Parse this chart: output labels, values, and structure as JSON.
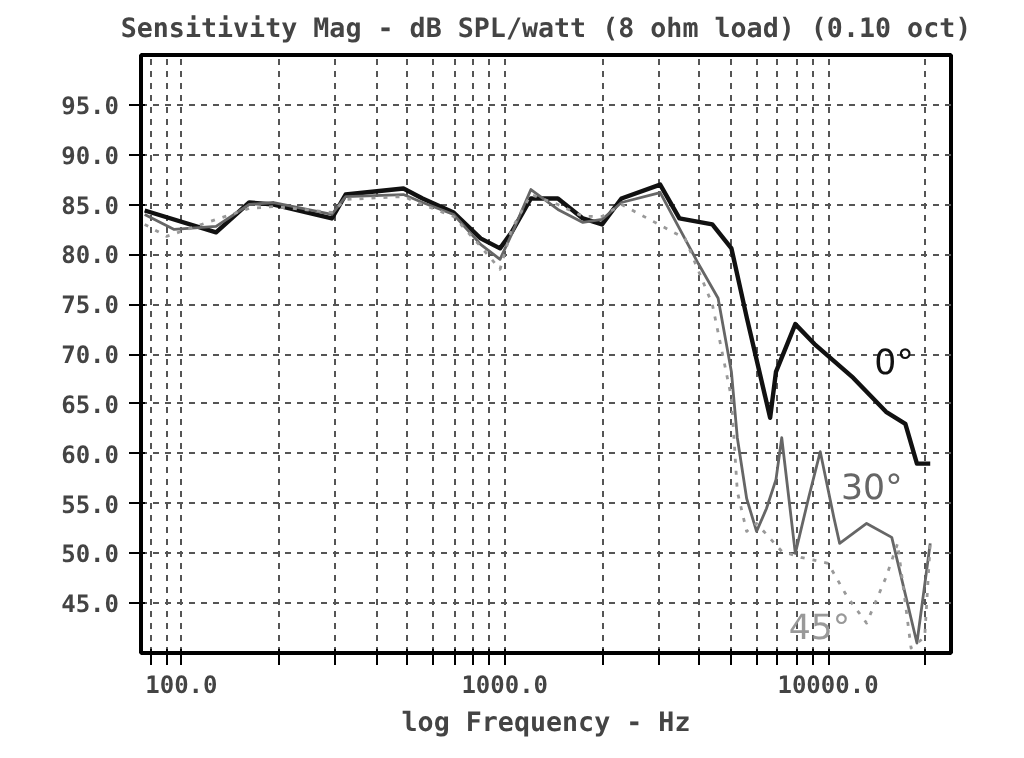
{
  "chart_data": {
    "type": "line",
    "title": "Sensitivity Mag - dB SPL/watt (8 ohm load) (0.10 oct)",
    "xlabel": "log Frequency - Hz",
    "log": "x",
    "grid": true,
    "xlim": [
      75,
      24000
    ],
    "ylim": [
      40,
      100
    ],
    "xticks": [
      {
        "value": 80,
        "label": null
      },
      {
        "value": 90,
        "label": null
      },
      {
        "value": 100,
        "label": "100.0"
      },
      {
        "value": 200,
        "label": null
      },
      {
        "value": 300,
        "label": null
      },
      {
        "value": 400,
        "label": null
      },
      {
        "value": 500,
        "label": null
      },
      {
        "value": 600,
        "label": null
      },
      {
        "value": 700,
        "label": null
      },
      {
        "value": 800,
        "label": null
      },
      {
        "value": 900,
        "label": null
      },
      {
        "value": 1000,
        "label": "1000.0"
      },
      {
        "value": 2000,
        "label": null
      },
      {
        "value": 3000,
        "label": null
      },
      {
        "value": 4000,
        "label": null
      },
      {
        "value": 5000,
        "label": null
      },
      {
        "value": 6000,
        "label": null
      },
      {
        "value": 7000,
        "label": null
      },
      {
        "value": 8000,
        "label": null
      },
      {
        "value": 9000,
        "label": null
      },
      {
        "value": 10000,
        "label": "10000.0"
      },
      {
        "value": 20000,
        "label": null
      }
    ],
    "yticks": [
      {
        "value": 45,
        "label": "45.0"
      },
      {
        "value": 50,
        "label": "50.0"
      },
      {
        "value": 55,
        "label": "55.0"
      },
      {
        "value": 60,
        "label": "60.0"
      },
      {
        "value": 65,
        "label": "65.0"
      },
      {
        "value": 70,
        "label": "70.0"
      },
      {
        "value": 75,
        "label": "75.0"
      },
      {
        "value": 80,
        "label": "80.0"
      },
      {
        "value": 85,
        "label": "85.0"
      },
      {
        "value": 90,
        "label": "90.0"
      },
      {
        "value": 95,
        "label": "95.0"
      }
    ],
    "series": [
      {
        "name": "0°",
        "color": "#111111",
        "line_style": "solid",
        "x": [
          77,
          128,
          162,
          193,
          292,
          322,
          486,
          557,
          695,
          842,
          967,
          1050,
          1205,
          1460,
          1745,
          2000,
          2296,
          3025,
          3470,
          4385,
          5025,
          5610,
          6620,
          6900,
          7920,
          9080,
          11970,
          15110,
          17340,
          18830,
          20700
        ],
        "values": [
          84.4,
          82.2,
          85.2,
          85,
          83.6,
          86,
          86.6,
          85.6,
          84.2,
          81.6,
          80.6,
          82.2,
          85.6,
          85.6,
          83.6,
          83,
          85.6,
          87,
          83.6,
          83,
          80.6,
          73.6,
          63.6,
          68.2,
          73,
          71,
          67.6,
          64.2,
          63,
          59,
          59
        ]
      },
      {
        "name": "30°",
        "color": "#666666",
        "line_style": "solid",
        "x": [
          77,
          95,
          128,
          162,
          193,
          292,
          322,
          486,
          557,
          695,
          842,
          967,
          1050,
          1205,
          1460,
          1745,
          2000,
          2296,
          3025,
          3980,
          4570,
          5025,
          5240,
          5600,
          6010,
          6450,
          6900,
          7190,
          7920,
          8710,
          9460,
          10420,
          10860,
          13160,
          15740,
          18830,
          20700
        ],
        "values": [
          84,
          82.5,
          82.8,
          85,
          85.2,
          84,
          85.8,
          86,
          85.2,
          84,
          81,
          79.5,
          82,
          86.5,
          84.5,
          83.2,
          83.5,
          85.2,
          86.2,
          79,
          75.6,
          68.2,
          61.6,
          55.5,
          52.2,
          54.5,
          57.4,
          61.6,
          50,
          55.6,
          60.2,
          53.6,
          51,
          53,
          51.6,
          41,
          51
        ]
      },
      {
        "name": "45°",
        "color": "#999999",
        "line_style": "dotted",
        "x": [
          77,
          90,
          128,
          162,
          193,
          292,
          322,
          486,
          557,
          695,
          842,
          967,
          1050,
          1205,
          1460,
          1745,
          2000,
          2296,
          3610,
          4385,
          5025,
          5240,
          5600,
          6010,
          7190,
          8240,
          10000,
          11480,
          13160,
          15110,
          16410,
          18060,
          19900,
          20700
        ],
        "values": [
          83,
          81.8,
          83.5,
          84.6,
          84.8,
          84.2,
          85.5,
          85.8,
          85,
          83.8,
          80.8,
          78.5,
          82.5,
          86,
          85,
          83.8,
          83.8,
          85,
          81.6,
          75,
          65.6,
          56.2,
          52.2,
          53,
          50.2,
          49.6,
          49,
          45.6,
          43,
          47.6,
          51,
          40.5,
          41.6,
          51
        ]
      }
    ]
  }
}
